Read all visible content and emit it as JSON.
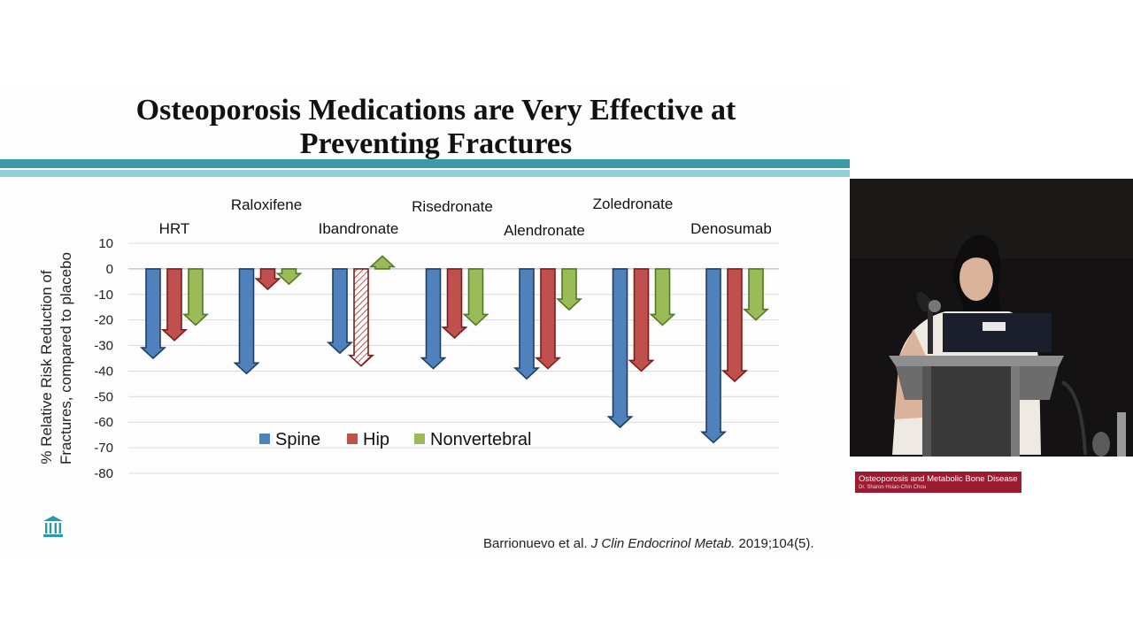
{
  "slide": {
    "title_line1": "Osteoporosis Medications are Very Effective at",
    "title_line2": "Preventing Fractures",
    "citation_authors": "Barrionuevo et al.",
    "citation_journal": "J Clin Endocrinol Metab.",
    "citation_ref": "2019;104(5)."
  },
  "video": {
    "lower_third_title": "Osteoporosis and Metabolic Bone Disease",
    "lower_third_subtitle": "Dr. Sharon Hsiao-Chin Chou"
  },
  "colors": {
    "spine": "#4f81bd",
    "hip": "#c0504d",
    "nonvertebral": "#9bbb59",
    "accent": "#3a9aa8"
  },
  "chart_data": {
    "type": "bar",
    "ylabel_line1": "% Relative Risk Reduction of",
    "ylabel_line2": "Fractures, compared to placebo",
    "ylim": [
      -80,
      10
    ],
    "yticks": [
      10,
      0,
      -10,
      -20,
      -30,
      -40,
      -50,
      -60,
      -70,
      -80
    ],
    "grid": true,
    "legend_position": "bottom-center",
    "categories": [
      "HRT",
      "Raloxifene",
      "Ibandronate",
      "Risedronate",
      "Alendronate",
      "Zoledronate",
      "Denosumab"
    ],
    "series": [
      {
        "name": "Spine",
        "values": [
          -35,
          -41,
          -33,
          -39,
          -43,
          -62,
          -68
        ]
      },
      {
        "name": "Hip",
        "values": [
          -28,
          -8,
          -38,
          -27,
          -39,
          -40,
          -44
        ]
      },
      {
        "name": "Nonvertebral",
        "values": [
          -22,
          -6,
          5,
          -22,
          -16,
          -22,
          -20
        ]
      }
    ],
    "notes": "Ibandronate hip bar drawn hatched (not significant)"
  }
}
